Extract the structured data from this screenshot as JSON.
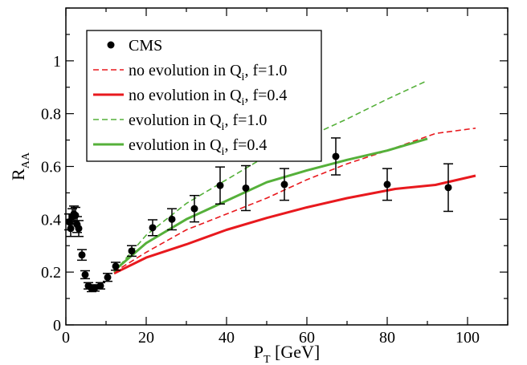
{
  "chart_data": {
    "type": "line",
    "xlabel": {
      "main": "P",
      "sub": "T",
      "rest": " [GeV]"
    },
    "ylabel": {
      "main": "R",
      "sub": "AA"
    },
    "xlim": [
      0,
      110
    ],
    "ylim": [
      0,
      1.2
    ],
    "x_ticks": [
      0,
      20,
      40,
      60,
      80,
      100
    ],
    "y_ticks": [
      0,
      0.2,
      0.4,
      0.6,
      0.8,
      1
    ],
    "x_minor_step": 10,
    "y_minor_step": 0.1,
    "grid": false,
    "legend_position": "top-left",
    "legend": [
      {
        "key": "cms",
        "main": "CMS",
        "sub": "",
        "rest": ""
      },
      {
        "key": "s1",
        "main": "no evolution in Q",
        "sub": "i",
        "rest": ", f=1.0"
      },
      {
        "key": "s2",
        "main": "no evolution in Q",
        "sub": "i",
        "rest": ", f=0.4"
      },
      {
        "key": "s3",
        "main": "evolution in Q",
        "sub": "i",
        "rest": ", f=1.0"
      },
      {
        "key": "s4",
        "main": "evolution in Q",
        "sub": "i",
        "rest": ", f=0.4"
      }
    ],
    "points": {
      "x": [
        0.8,
        1.2,
        1.6,
        2.0,
        2.4,
        2.8,
        3.2,
        4.0,
        4.8,
        5.6,
        6.4,
        7.2,
        8.6,
        10.4,
        12.4,
        16.4,
        21.6,
        26.4,
        32.0,
        38.4,
        44.8,
        54.4,
        67.2,
        80.0,
        95.2
      ],
      "y": [
        0.39,
        0.365,
        0.41,
        0.42,
        0.415,
        0.38,
        0.365,
        0.265,
        0.19,
        0.148,
        0.138,
        0.14,
        0.148,
        0.18,
        0.222,
        0.28,
        0.368,
        0.4,
        0.44,
        0.528,
        0.518,
        0.532,
        0.638,
        0.532,
        0.52
      ],
      "err": [
        0.03,
        0.03,
        0.03,
        0.03,
        0.03,
        0.03,
        0.03,
        0.02,
        0.015,
        0.012,
        0.012,
        0.012,
        0.012,
        0.015,
        0.015,
        0.02,
        0.03,
        0.04,
        0.05,
        0.07,
        0.085,
        0.06,
        0.07,
        0.06,
        0.09
      ],
      "color": "#000000"
    },
    "series": [
      {
        "key": "s1",
        "color": "#e8191e",
        "dashed": true,
        "width": 1.6,
        "x": [
          12,
          20,
          30,
          40,
          50,
          60,
          70,
          80,
          92,
          102
        ],
        "y": [
          0.2,
          0.275,
          0.36,
          0.42,
          0.48,
          0.55,
          0.61,
          0.66,
          0.725,
          0.745
        ]
      },
      {
        "key": "s2",
        "color": "#e8191e",
        "dashed": false,
        "width": 3,
        "x": [
          12,
          20,
          30,
          40,
          50,
          60,
          70,
          82,
          92,
          102
        ],
        "y": [
          0.195,
          0.255,
          0.305,
          0.36,
          0.405,
          0.445,
          0.48,
          0.515,
          0.53,
          0.565
        ]
      },
      {
        "key": "s3",
        "color": "#55b03a",
        "dashed": true,
        "width": 1.6,
        "x": [
          12,
          20,
          30,
          40,
          50,
          60,
          70,
          80,
          90
        ],
        "y": [
          0.2,
          0.34,
          0.46,
          0.55,
          0.64,
          0.71,
          0.78,
          0.855,
          0.925
        ]
      },
      {
        "key": "s4",
        "color": "#55b03a",
        "dashed": false,
        "width": 3,
        "x": [
          12,
          20,
          30,
          40,
          50,
          60,
          70,
          80,
          90
        ],
        "y": [
          0.205,
          0.31,
          0.4,
          0.47,
          0.54,
          0.585,
          0.625,
          0.66,
          0.705
        ]
      }
    ]
  }
}
